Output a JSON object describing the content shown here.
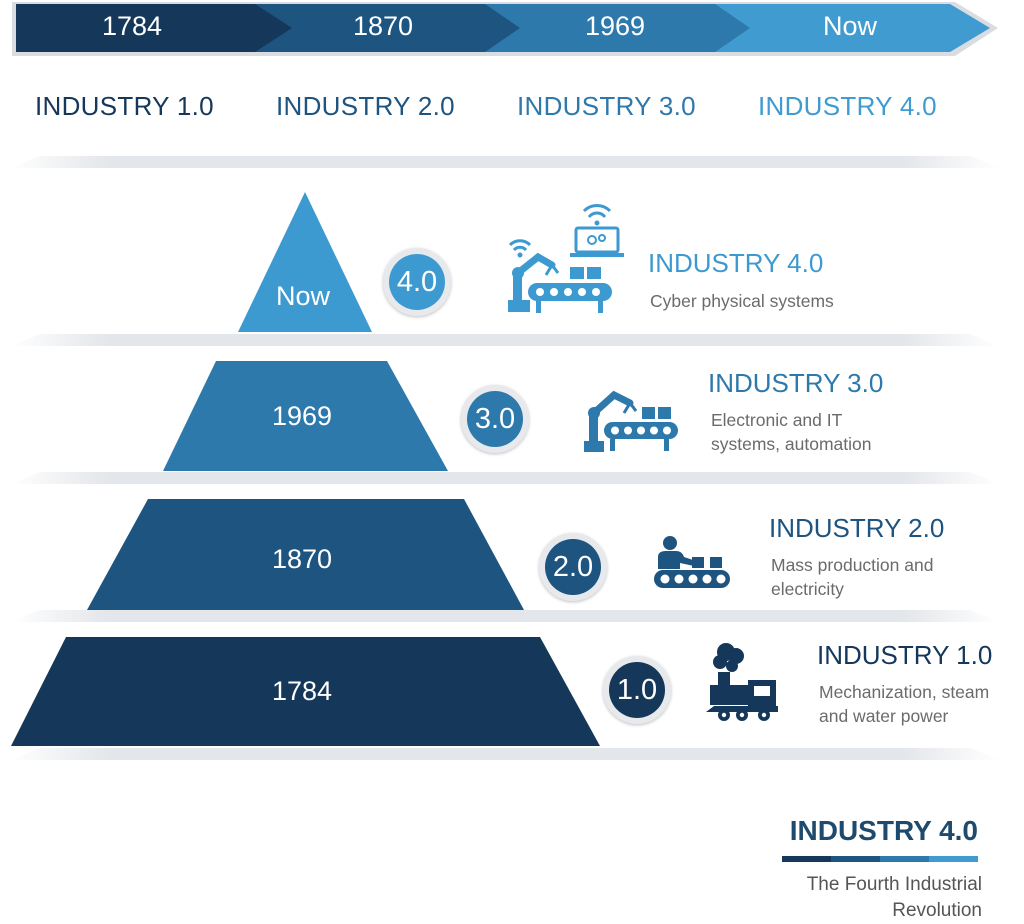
{
  "timeline": {
    "labels": [
      "1784",
      "1870",
      "1969",
      "Now"
    ],
    "colors": [
      "#15375a",
      "#1d5480",
      "#2e79ac",
      "#3f9bd0"
    ]
  },
  "era_headings": [
    {
      "label": "INDUSTRY 1.0",
      "color": "#15375a"
    },
    {
      "label": "INDUSTRY 2.0",
      "color": "#1d5480"
    },
    {
      "label": "INDUSTRY 3.0",
      "color": "#2e79ac"
    },
    {
      "label": "INDUSTRY 4.0",
      "color": "#3f9bd0"
    }
  ],
  "tiers": [
    {
      "year": "Now",
      "badge": "4.0",
      "title": "INDUSTRY 4.0",
      "description": "Cyber physical systems",
      "color": "#3d9ad0",
      "icon": "robot-arm-iot-icon"
    },
    {
      "year": "1969",
      "badge": "3.0",
      "title": "INDUSTRY 3.0",
      "description": "Electronic and IT\nsystems, automation",
      "color": "#2e79ac",
      "icon": "robot-arm-conveyor-icon"
    },
    {
      "year": "1870",
      "badge": "2.0",
      "title": "INDUSTRY 2.0",
      "description": "Mass production and\nelectricity",
      "color": "#1d5480",
      "icon": "worker-conveyor-icon"
    },
    {
      "year": "1784",
      "badge": "1.0",
      "title": "INDUSTRY 1.0",
      "description": "Mechanization, steam\nand water power",
      "color": "#15375a",
      "icon": "steam-locomotive-icon"
    }
  ],
  "footer": {
    "title": "INDUSTRY 4.0",
    "subtitle": "The Fourth Industrial\nRevolution"
  }
}
